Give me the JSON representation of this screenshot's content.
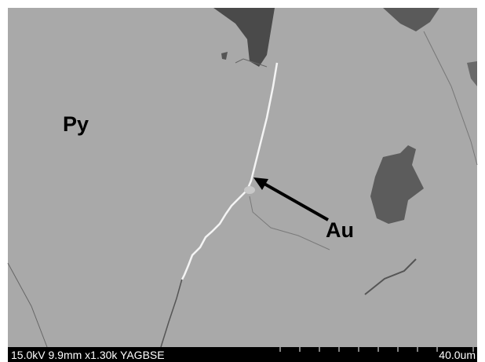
{
  "labels": {
    "phase_1": "Py",
    "phase_2": "Au"
  },
  "info_bar": {
    "parameters": "15.0kV 9.9mm x1.30k YAGBSE",
    "scale": "40.0um"
  }
}
